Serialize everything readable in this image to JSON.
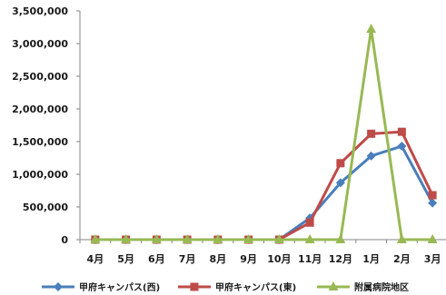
{
  "chart_data": {
    "type": "line",
    "categories": [
      "4月",
      "5月",
      "6月",
      "7月",
      "8月",
      "9月",
      "10月",
      "11月",
      "12月",
      "1月",
      "2月",
      "3月"
    ],
    "ylim": [
      0,
      3500000
    ],
    "yticks": [
      0,
      500000,
      1000000,
      1500000,
      2000000,
      2500000,
      3000000,
      3500000
    ],
    "ytick_labels": [
      "0",
      "500,000",
      "1,000,000",
      "1,500,000",
      "2,000,000",
      "2,500,000",
      "3,000,000",
      "3,500,000"
    ],
    "grid": false,
    "legend_position": "bottom",
    "series": [
      {
        "name": "甲府キャンパス(西)",
        "color": "#4a7ebb",
        "marker": "diamond",
        "values": [
          0,
          0,
          0,
          0,
          0,
          0,
          0,
          330000,
          870000,
          1280000,
          1430000,
          560000
        ]
      },
      {
        "name": "甲府キャンパス(東)",
        "color": "#be4b48",
        "marker": "square",
        "values": [
          0,
          0,
          0,
          0,
          0,
          0,
          0,
          260000,
          1170000,
          1620000,
          1650000,
          680000
        ]
      },
      {
        "name": "附属病院地区",
        "color": "#98b954",
        "marker": "triangle",
        "values": [
          0,
          0,
          0,
          0,
          0,
          0,
          0,
          0,
          0,
          3220000,
          0,
          0
        ]
      }
    ]
  }
}
